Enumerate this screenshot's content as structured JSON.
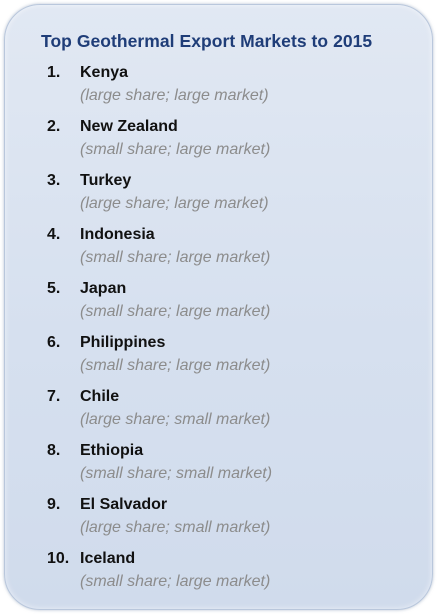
{
  "title": "Top Geothermal Export Markets to 2015",
  "items": [
    {
      "num": "1.",
      "country": "Kenya",
      "note": "(large share; large market)"
    },
    {
      "num": "2.",
      "country": "New Zealand",
      "note": "(small share; large market)"
    },
    {
      "num": "3.",
      "country": "Turkey",
      "note": "(large share; large market)"
    },
    {
      "num": "4.",
      "country": "Indonesia",
      "note": "(small share; large market)"
    },
    {
      "num": "5.",
      "country": "Japan",
      "note": "(small share; large market)"
    },
    {
      "num": "6.",
      "country": "Philippines",
      "note": "(small share; large market)"
    },
    {
      "num": "7.",
      "country": "Chile",
      "note": "(large share; small market)"
    },
    {
      "num": "8.",
      "country": "Ethiopia",
      "note": "(small share; small market)"
    },
    {
      "num": "9.",
      "country": "El Salvador",
      "note": "(large share; small market)"
    },
    {
      "num": "10.",
      "country": "Iceland",
      "note": "(small share; large market)"
    }
  ]
}
